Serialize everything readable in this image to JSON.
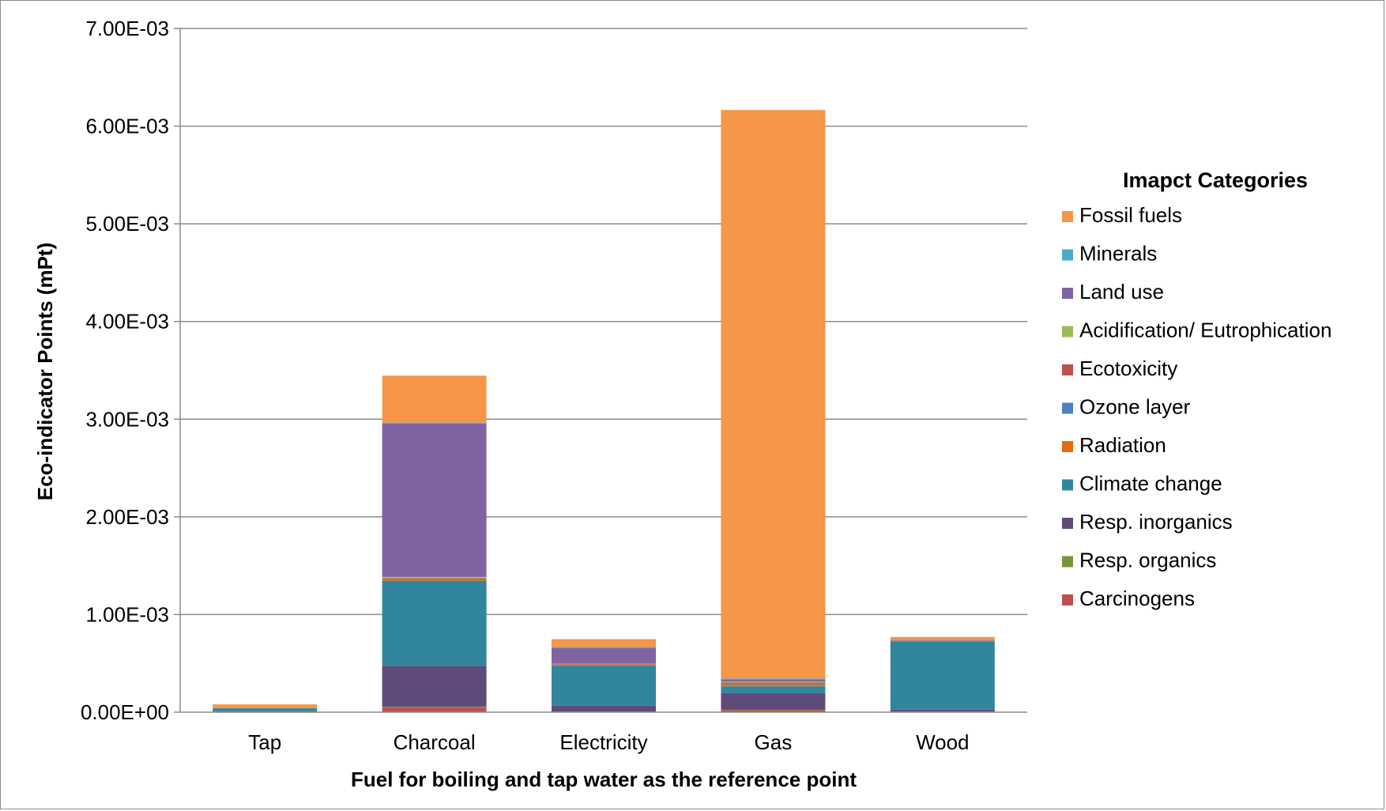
{
  "chart_data": {
    "type": "bar",
    "stacked": true,
    "title": "",
    "xlabel": "Fuel for boiling and tap water as the reference point",
    "ylabel": "Eco-indicator Points (mPt)",
    "ylim": [
      0,
      0.007
    ],
    "yticks": [
      0,
      0.001,
      0.002,
      0.003,
      0.004,
      0.005,
      0.006,
      0.007
    ],
    "ytick_labels": [
      "0.00E+00",
      "1.00E-03",
      "2.00E-03",
      "3.00E-03",
      "4.00E-03",
      "5.00E-03",
      "6.00E-03",
      "7.00E-03"
    ],
    "grid": true,
    "legend_title": "Imapct Categories",
    "legend_position": "right",
    "categories": [
      "Tap",
      "Charcoal",
      "Electricity",
      "Gas",
      "Wood"
    ],
    "series": [
      {
        "name": "Carcinogens",
        "color": "#c0504d",
        "values": [
          3e-06,
          5e-05,
          5e-06,
          2e-05,
          5e-06
        ]
      },
      {
        "name": "Resp. organics",
        "color": "#77933c",
        "values": [
          1e-06,
          5e-06,
          1e-06,
          5e-06,
          1e-06
        ]
      },
      {
        "name": "Resp. inorganics",
        "color": "#604a7b",
        "values": [
          6e-06,
          0.00042,
          6e-05,
          0.00017,
          2e-05
        ]
      },
      {
        "name": "Climate change",
        "color": "#31859c",
        "values": [
          3e-05,
          0.00087,
          0.00041,
          7e-05,
          0.0007
        ]
      },
      {
        "name": "Radiation",
        "color": "#e46c0a",
        "values": [
          1e-06,
          1e-05,
          1e-05,
          2e-05,
          5e-06
        ]
      },
      {
        "name": "Ozone layer",
        "color": "#4f81bd",
        "values": [
          1e-06,
          5e-06,
          2e-06,
          1e-05,
          2e-06
        ]
      },
      {
        "name": "Ecotoxicity",
        "color": "#c0504d",
        "values": [
          1e-06,
          1e-05,
          5e-06,
          1e-05,
          5e-06
        ]
      },
      {
        "name": "Acidification/ Eutrophication",
        "color": "#9bbb59",
        "values": [
          1e-06,
          1.5e-05,
          5e-06,
          1e-05,
          5e-06
        ]
      },
      {
        "name": "Land use",
        "color": "#8064a2",
        "values": [
          2e-06,
          0.00157,
          0.00016,
          2e-05,
          5e-06
        ]
      },
      {
        "name": "Minerals",
        "color": "#4bacc6",
        "values": [
          1e-06,
          1e-05,
          1e-05,
          1e-05,
          2e-06
        ]
      },
      {
        "name": "Fossil fuels",
        "color": "#f79646",
        "values": [
          3.3e-05,
          0.00048,
          8e-05,
          0.00582,
          2e-05
        ]
      }
    ],
    "legend_order": [
      "Fossil fuels",
      "Minerals",
      "Land use",
      "Acidification/ Eutrophication",
      "Ecotoxicity",
      "Ozone layer",
      "Radiation",
      "Climate change",
      "Resp. inorganics",
      "Resp. organics",
      "Carcinogens"
    ]
  }
}
